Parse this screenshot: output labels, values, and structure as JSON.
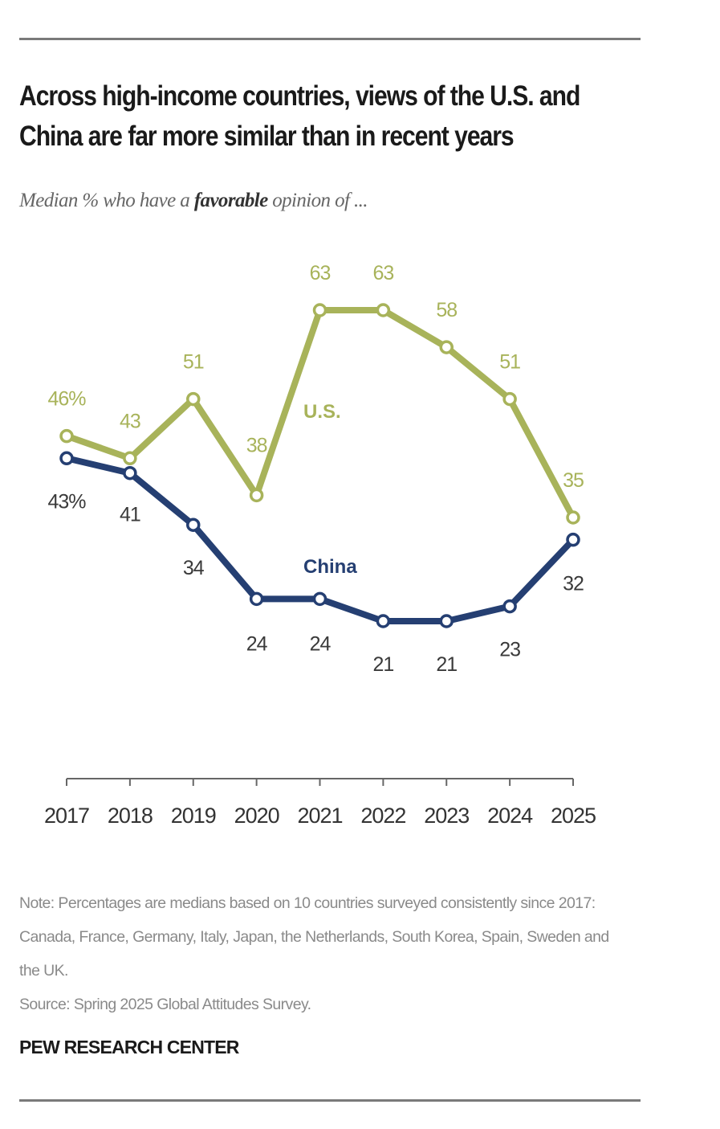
{
  "header": {
    "title": "Across high-income countries, views of the U.S. and China are far more similar than in recent years",
    "subtitle_before": "Median % who have a ",
    "subtitle_bold": "favorable",
    "subtitle_after": " opinion of ..."
  },
  "chart_data": {
    "type": "line",
    "x": [
      "2017",
      "2018",
      "2019",
      "2020",
      "2021",
      "2022",
      "2023",
      "2024",
      "2025"
    ],
    "series": [
      {
        "name": "U.S.",
        "values": [
          46,
          43,
          51,
          38,
          63,
          63,
          58,
          51,
          35
        ],
        "labels": [
          "46%",
          "43",
          "51",
          "38",
          "63",
          "63",
          "58",
          "51",
          "35"
        ],
        "color": "#a8b35a"
      },
      {
        "name": "China",
        "values": [
          43,
          41,
          34,
          24,
          24,
          21,
          21,
          23,
          32
        ],
        "labels": [
          "43%",
          "41",
          "34",
          "24",
          "24",
          "21",
          "21",
          "23",
          "32"
        ],
        "color": "#253f72"
      }
    ],
    "ylim": [
      0,
      70
    ],
    "grid": false,
    "legend": "inline"
  },
  "footer": {
    "note": "Note: Percentages are medians based on 10 countries surveyed consistently since 2017: Canada, France, Germany, Italy, Japan, the Netherlands, South Korea, Spain, Sweden and the UK.",
    "source": "Source: Spring 2025 Global Attitudes Survey.",
    "brand": "PEW RESEARCH CENTER"
  }
}
